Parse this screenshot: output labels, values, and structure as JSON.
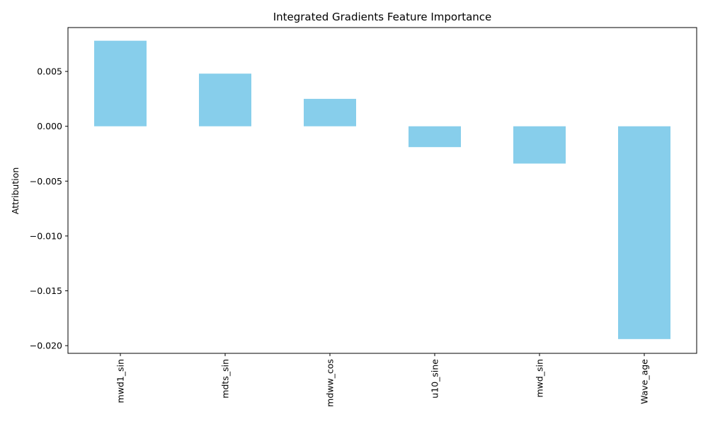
{
  "chart_data": {
    "type": "bar",
    "title": "Integrated Gradients Feature Importance",
    "xlabel": "",
    "ylabel": "Attribution",
    "categories": [
      "mwd1_sin",
      "mdts_sin",
      "mdww_cos",
      "u10_sine",
      "mwd_sin",
      "Wave_age"
    ],
    "values": [
      0.0078,
      0.0048,
      0.0025,
      -0.0019,
      -0.0034,
      -0.0194
    ],
    "ylim": [
      -0.0207,
      0.009
    ],
    "yticks": [
      0.005,
      0.0,
      -0.005,
      -0.01,
      -0.015,
      -0.02
    ],
    "ytick_labels": [
      "0.005",
      "0.000",
      "−0.005",
      "−0.010",
      "−0.015",
      "−0.020"
    ],
    "bar_color": "#87ceeb",
    "grid": false,
    "legend": "none"
  }
}
